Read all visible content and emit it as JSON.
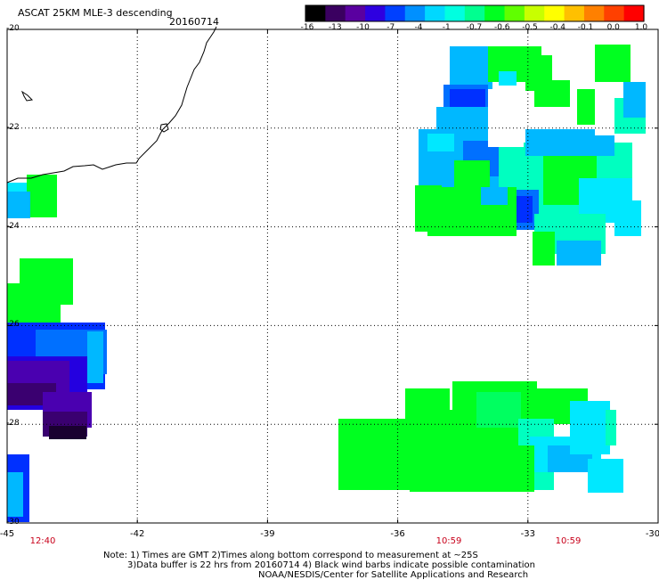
{
  "header": {
    "title": "ASCAT 25KM MLE-3 descending",
    "date": "20160714"
  },
  "colorbar": {
    "tick_labels": [
      "-16",
      "-13",
      "-10",
      "-7",
      "-4",
      "-1",
      "-0.7",
      "-0.6",
      "-0.5",
      "-0.4",
      "-0.1",
      "0.0",
      "1.0"
    ],
    "colors": [
      "#000000",
      "#3a0060",
      "#5a00a0",
      "#2e00e0",
      "#0040ff",
      "#0090ff",
      "#00d8ff",
      "#00ffe0",
      "#00ff90",
      "#00ff20",
      "#60ff00",
      "#c8ff00",
      "#ffff00",
      "#ffc000",
      "#ff8000",
      "#ff4000",
      "#ff0000"
    ]
  },
  "map": {
    "lat_labels": [
      "-20",
      "-22",
      "-24",
      "-26",
      "-28",
      "-30"
    ],
    "lon_labels": [
      "-45",
      "-42",
      "-39",
      "-36",
      "-33",
      "-30"
    ],
    "time_labels": [
      "12:40",
      "10:59",
      "10:59"
    ]
  },
  "notes": {
    "line1": "Note: 1) Times are GMT 2)Times along bottom correspond to measurement at ~25S",
    "line2": "3)Data buffer is 22 hrs from 20160714 4) Black wind barbs indicate possible contamination",
    "line3": "NOAA/NESDIS/Center for Satellite Applications and Research"
  }
}
